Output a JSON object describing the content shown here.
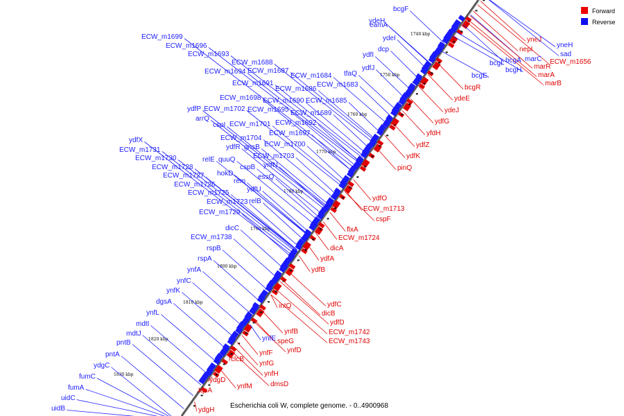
{
  "caption": "Escherichia coli W, complete genome. - 0..4900968",
  "legend": [
    {
      "label": "Forward",
      "color": "#ee0000"
    },
    {
      "label": "Reverse",
      "color": "#1010ee"
    }
  ],
  "colors": {
    "forward": "#e00000",
    "reverse": "#1a1aff",
    "track": "#666666"
  },
  "ticks": [
    "1740 kbp",
    "1750 kbp",
    "1760 kbp",
    "1770 kbp",
    "1780 kbp",
    "1790 kbp",
    "1800 kbp",
    "1810 kbp",
    "1820 kbp",
    "1830 kbp"
  ],
  "reverse_genes": [
    "bcgF",
    "eamA",
    "ydeH",
    "ydeI",
    "dcp",
    "ydfI",
    "ydfJ",
    "tfaQ",
    "ECW_m1699",
    "ECW_m1696",
    "ECW_m1693",
    "ECW_m1688",
    "ECW_m1694",
    "ECW_m1687",
    "ECW_m1684",
    "ECW_m1691",
    "ECW_m1686",
    "ECW_m1683",
    "ECW_m1698",
    "ECW_m1690",
    "ECW_m1685",
    "ydfP",
    "ECW_m1702",
    "ECW_m1695",
    "ECW_m1689",
    "arrQ",
    "cspI",
    "ECW_m1701",
    "ECW_m1692",
    "ECW_m1697",
    "ECW_m1704",
    "ydfX",
    "ydfR",
    "gnsB",
    "ECW_m1700",
    "ECW_m1731",
    "ECW_m1730",
    "ECW_m1703",
    "relE",
    "quuQ",
    "ynfN",
    "ECW_m1728",
    "cspB",
    "hokD",
    "ECW_m1727",
    "essQ",
    "rem",
    "ECW_m1726",
    "ydfU",
    "ECW_m1725",
    "relB",
    "ECW_m1723",
    "ECW_m1729",
    "dicC",
    "ECW_m1738",
    "rspB",
    "rspA",
    "ynfA",
    "ynfC",
    "ynfK",
    "dgsA",
    "ynfL",
    "mdtI",
    "mdtJ",
    "pntB",
    "pntA",
    "ydgC",
    "fumC",
    "fumA",
    "uidC",
    "uidB",
    "bcgI",
    "bcgH",
    "bcgE",
    "ynfE",
    "ynfF"
  ],
  "forward_genes": [
    "yneJ",
    "yneH",
    "sad",
    "nepI",
    "marC",
    "bcgA",
    "ECW_m1656",
    "marR",
    "marA",
    "marB",
    "bcgR",
    "ydeE",
    "ydeJ",
    "ydfG",
    "yfdH",
    "ydfZ",
    "ydfK",
    "pinQ",
    "ydfO",
    "ECW_m1713",
    "cspF",
    "flxA",
    "ECW_m1724",
    "dicA",
    "ydfA",
    "ydfB",
    "intQ",
    "ydfC",
    "dicB",
    "ydfD",
    "ECW_m1742",
    "ECW_m1743",
    "ynfB",
    "speG",
    "ynfD",
    "clcB",
    "ynfG",
    "ynfH",
    "ydgD",
    "dmsD",
    "ynfM",
    "tqsA",
    "ydgH"
  ]
}
